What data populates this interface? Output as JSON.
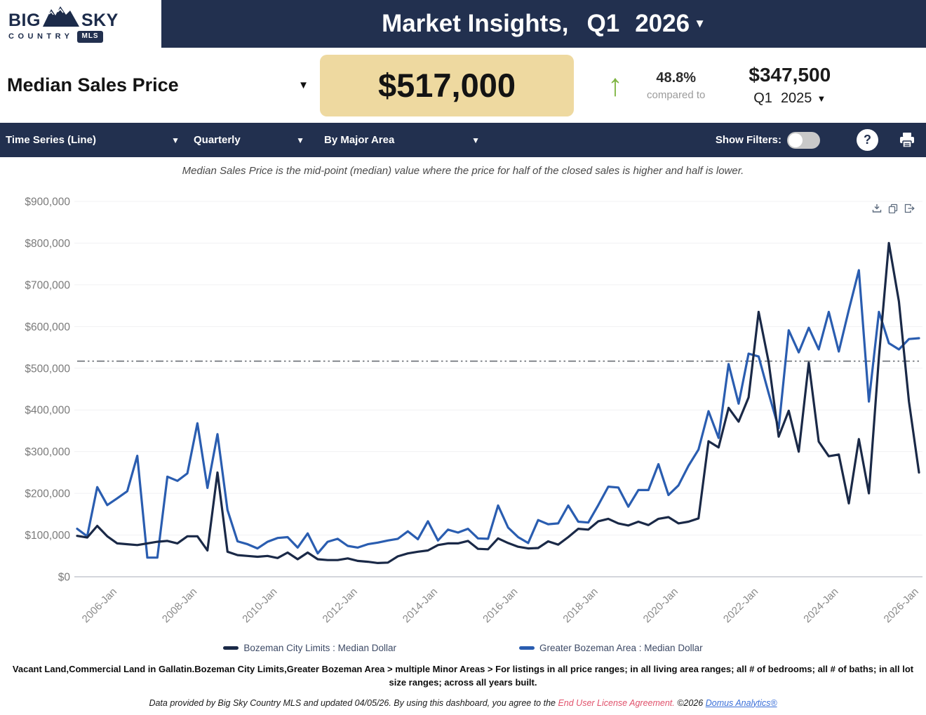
{
  "header": {
    "logo": {
      "word_left": "BIG",
      "word_right": "SKY",
      "line2": "COUNTRY",
      "badge": "MLS"
    },
    "title": {
      "prefix": "Market Insights,",
      "quarter": "Q1",
      "year": "2026"
    }
  },
  "stats": {
    "metric_label": "Median Sales Price",
    "current_value": "$517,000",
    "up_arrow": "↑",
    "change_pct": "48.8%",
    "compared_to_label": "compared to",
    "previous_value": "$347,500",
    "previous_quarter": "Q1",
    "previous_year": "2025"
  },
  "filter_bar": {
    "dropdowns": [
      {
        "label": "Time Series (Line)"
      },
      {
        "label": "Quarterly"
      },
      {
        "label": "By Major Area"
      }
    ],
    "show_filters_label": "Show Filters:",
    "help_label": "?"
  },
  "chart_note": "Median Sales Price is the mid-point (median) value where the price for half of the closed sales is higher and half is lower.",
  "legend": [
    {
      "label": "Bozeman City Limits : Median Dollar",
      "color": "#1a2947"
    },
    {
      "label": "Greater Bozeman Area : Median Dollar",
      "color": "#2a5db0"
    }
  ],
  "footnote": "Vacant Land,Commercial Land in Gallatin.Bozeman City Limits,Greater Bozeman Area > multiple Minor Areas > For listings in all price ranges; in all living area ranges; all # of bedrooms; all # of baths; in all lot size ranges; across all years built.",
  "fine_print": {
    "part1": "Data provided by Big Sky Country MLS and updated 04/05/26.  By using this dashboard, you agree to the ",
    "eula": "End User License Agreement.",
    "part2": "  ©2026 ",
    "brand_link": "Domus Analytics®"
  },
  "colors": {
    "navy": "#22304f",
    "gold_pill": "#eed9a0",
    "green_arrow": "#7fb543",
    "grid": "#f1f1f3",
    "axis_line": "#b9bec7",
    "axis_text": "#7a7a7a",
    "ref_line": "#6b6f76",
    "icon_gray": "#5d6b7e"
  },
  "chart_data": {
    "type": "line",
    "title": "Median Sales Price",
    "x_frequency": "quarterly",
    "x_start": "2005-Jan",
    "x_end": "2026-Jan",
    "x_tick_labels": [
      "2006-Jan",
      "2008-Jan",
      "2010-Jan",
      "2012-Jan",
      "2014-Jan",
      "2016-Jan",
      "2018-Jan",
      "2020-Jan",
      "2022-Jan",
      "2024-Jan",
      "2026-Jan"
    ],
    "x_tick_indices": [
      4,
      12,
      20,
      28,
      36,
      44,
      52,
      60,
      68,
      76,
      84
    ],
    "ylim": [
      0,
      900000
    ],
    "y_tick_step": 100000,
    "reference_line_value": 517000,
    "grid": true,
    "legend_position": "bottom",
    "series": [
      {
        "name": "Bozeman City Limits : Median Dollar",
        "color": "#1a2947",
        "values": [
          98000,
          94000,
          122000,
          97000,
          80000,
          78000,
          76000,
          80000,
          84000,
          86000,
          80000,
          97000,
          97000,
          63000,
          250000,
          60000,
          52000,
          50000,
          48000,
          50000,
          45000,
          58000,
          42000,
          58000,
          42000,
          40000,
          40000,
          44000,
          38000,
          36000,
          33000,
          34000,
          49000,
          56000,
          60000,
          63000,
          76000,
          80000,
          80000,
          86000,
          67000,
          66000,
          92000,
          81000,
          72000,
          68000,
          69000,
          85000,
          77000,
          95000,
          115000,
          113000,
          133000,
          139000,
          128000,
          123000,
          132000,
          124000,
          139000,
          143000,
          128000,
          132000,
          140000,
          325000,
          310000,
          405000,
          372000,
          430000,
          635000,
          515000,
          336000,
          398000,
          300000,
          513000,
          324000,
          289000,
          293000,
          176000,
          330000,
          200000,
          527000,
          800000,
          660000,
          420000,
          250000
        ]
      },
      {
        "name": "Greater Bozeman Area : Median Dollar",
        "color": "#2a5db0",
        "values": [
          115000,
          97000,
          215000,
          172000,
          188000,
          205000,
          290000,
          46000,
          46000,
          240000,
          230000,
          248000,
          368000,
          213000,
          342000,
          160000,
          85000,
          78000,
          68000,
          84000,
          93000,
          95000,
          70000,
          104000,
          56000,
          84000,
          91000,
          74000,
          70000,
          78000,
          82000,
          87000,
          91000,
          109000,
          90000,
          133000,
          87000,
          113000,
          106000,
          115000,
          92000,
          91000,
          171000,
          118000,
          95000,
          81000,
          136000,
          126000,
          128000,
          171000,
          132000,
          130000,
          172000,
          216000,
          214000,
          168000,
          208000,
          208000,
          270000,
          196000,
          219000,
          266000,
          305000,
          397000,
          333000,
          510000,
          415000,
          535000,
          528000,
          440000,
          356000,
          591000,
          538000,
          597000,
          545000,
          635000,
          540000,
          640000,
          735000,
          420000,
          635000,
          560000,
          545000,
          570000,
          572000
        ]
      }
    ]
  }
}
